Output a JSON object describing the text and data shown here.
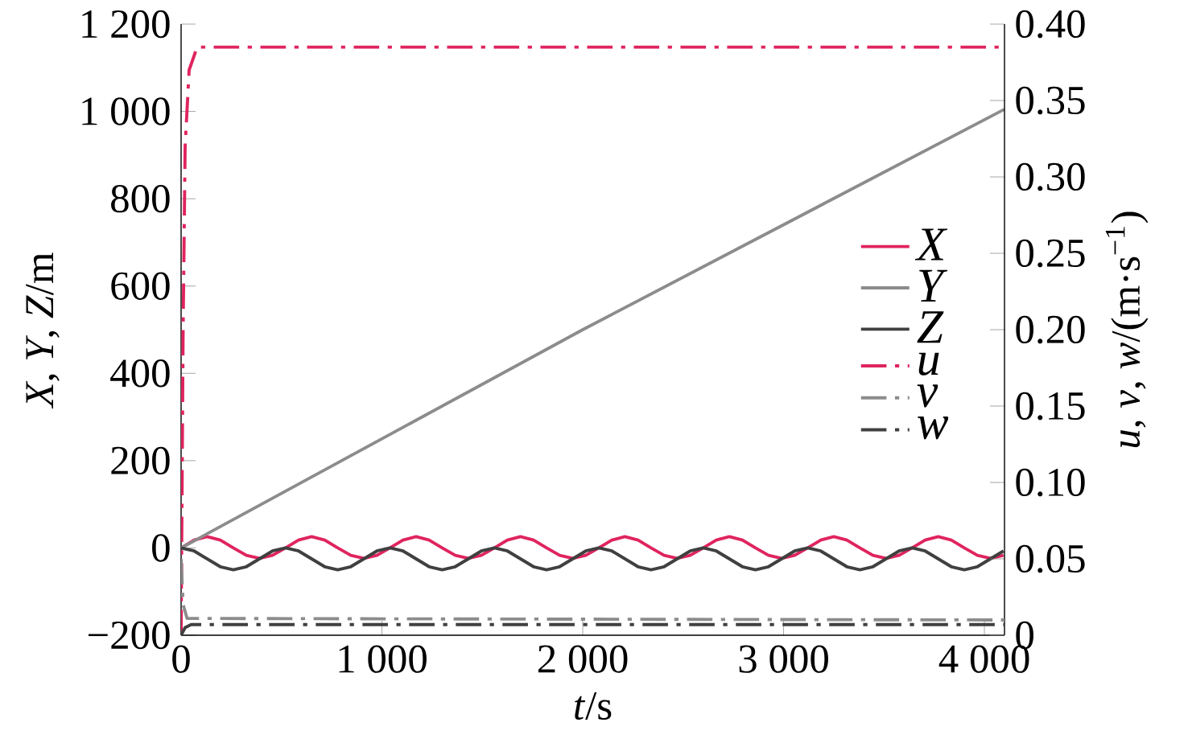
{
  "chart_data": {
    "type": "line",
    "xlabel": "*t*/s",
    "ylabel": "*X*, *Y*, *Z*/m",
    "y2label": "*u*, *v*, *w*/(m·s$^{−1}$)",
    "xlim": [
      0,
      4100
    ],
    "ylim": [
      -200,
      1200
    ],
    "y2lim": [
      0,
      0.4
    ],
    "xticks": [
      0,
      {
        "value": 1000,
        "label": "1 000"
      },
      {
        "value": 2000,
        "label": "2 000"
      },
      {
        "value": 3000,
        "label": "3 000"
      },
      {
        "value": 4000,
        "label": "4 000"
      }
    ],
    "yticks": [
      {
        "value": -200,
        "label": "−200"
      },
      0,
      200,
      400,
      600,
      800,
      {
        "value": 1000,
        "label": "1 000"
      },
      {
        "value": 1200,
        "label": "1 200"
      }
    ],
    "y2ticks": [
      0,
      0.05,
      {
        "value": 0.1,
        "label": "0.10"
      },
      0.15,
      {
        "value": 0.2,
        "label": "0.20"
      },
      0.25,
      {
        "value": 0.3,
        "label": "0.30"
      },
      0.35,
      {
        "value": 0.4,
        "label": "0.40"
      }
    ],
    "legend": "right",
    "grid": false,
    "marker": "none",
    "series": [
      {
        "name": "X",
        "color": "#e0245e",
        "line_style": "solid",
        "x": [
          0,
          65,
          130,
          195,
          260,
          325,
          390,
          455,
          520,
          585,
          650,
          715,
          780,
          845,
          910,
          975,
          1040,
          1105,
          1170,
          1235,
          1300,
          1365,
          1430,
          1495,
          1560,
          1625,
          1690,
          1755,
          1820,
          1885,
          1950,
          2015,
          2080,
          2145,
          2210,
          2275,
          2340,
          2405,
          2470,
          2535,
          2600,
          2665,
          2730,
          2795,
          2860,
          2925,
          2990,
          3055,
          3120,
          3185,
          3250,
          3315,
          3380,
          3445,
          3510,
          3575,
          3640,
          3705,
          3770,
          3835,
          3900,
          3965,
          4030,
          4095
        ],
        "values": [
          0,
          18,
          26,
          18,
          0,
          -17,
          -24,
          -17,
          0,
          18,
          26,
          18,
          0,
          -17,
          -24,
          -17,
          0,
          18,
          26,
          18,
          0,
          -17,
          -24,
          -17,
          0,
          18,
          26,
          18,
          0,
          -17,
          -24,
          -17,
          0,
          18,
          26,
          18,
          0,
          -17,
          -24,
          -17,
          0,
          18,
          26,
          18,
          0,
          -17,
          -24,
          -17,
          0,
          18,
          26,
          18,
          0,
          -17,
          -24,
          -17,
          0,
          18,
          26,
          18,
          0,
          -17,
          -24,
          -17
        ]
      },
      {
        "name": "Y",
        "color": "#8c8c8c",
        "line_style": "solid",
        "x": [
          0,
          2000,
          4100
        ],
        "values": [
          0,
          500,
          1005
        ]
      },
      {
        "name": "Z",
        "color": "#404040",
        "line_style": "solid",
        "x": [
          0,
          65,
          130,
          195,
          260,
          325,
          390,
          455,
          520,
          585,
          650,
          715,
          780,
          845,
          910,
          975,
          1040,
          1105,
          1170,
          1235,
          1300,
          1365,
          1430,
          1495,
          1560,
          1625,
          1690,
          1755,
          1820,
          1885,
          1950,
          2015,
          2080,
          2145,
          2210,
          2275,
          2340,
          2405,
          2470,
          2535,
          2600,
          2665,
          2730,
          2795,
          2860,
          2925,
          2990,
          3055,
          3120,
          3185,
          3250,
          3315,
          3380,
          3445,
          3510,
          3575,
          3640,
          3705,
          3770,
          3835,
          3900,
          3965,
          4030,
          4095
        ],
        "values": [
          0,
          -7,
          -25,
          -43,
          -50,
          -43,
          -25,
          -7,
          0,
          -7,
          -25,
          -43,
          -50,
          -43,
          -25,
          -7,
          0,
          -7,
          -25,
          -43,
          -50,
          -43,
          -25,
          -7,
          0,
          -7,
          -25,
          -43,
          -50,
          -43,
          -25,
          -7,
          0,
          -7,
          -25,
          -43,
          -50,
          -43,
          -25,
          -7,
          0,
          -7,
          -25,
          -43,
          -50,
          -43,
          -25,
          -7,
          0,
          -7,
          -25,
          -43,
          -50,
          -43,
          -25,
          -7,
          0,
          -7,
          -25,
          -43,
          -50,
          -43,
          -25,
          -7
        ]
      },
      {
        "name": "u",
        "color": "#e0245e",
        "line_style": "dashed",
        "axis": "y2",
        "x": [
          0,
          10,
          20,
          40,
          80,
          4100
        ],
        "values": [
          0,
          0.2,
          0.32,
          0.37,
          0.385,
          0.385
        ]
      },
      {
        "name": "v",
        "color": "#8c8c8c",
        "line_style": "dashed",
        "axis": "y2",
        "x": [
          0,
          10,
          30,
          4100
        ],
        "values": [
          0.05,
          0.02,
          0.011,
          0.01
        ]
      },
      {
        "name": "w",
        "color": "#404040",
        "line_style": "dashed",
        "axis": "y2",
        "x": [
          0,
          20,
          50,
          4100
        ],
        "values": [
          0,
          0.005,
          0.007,
          0.007
        ]
      }
    ]
  }
}
